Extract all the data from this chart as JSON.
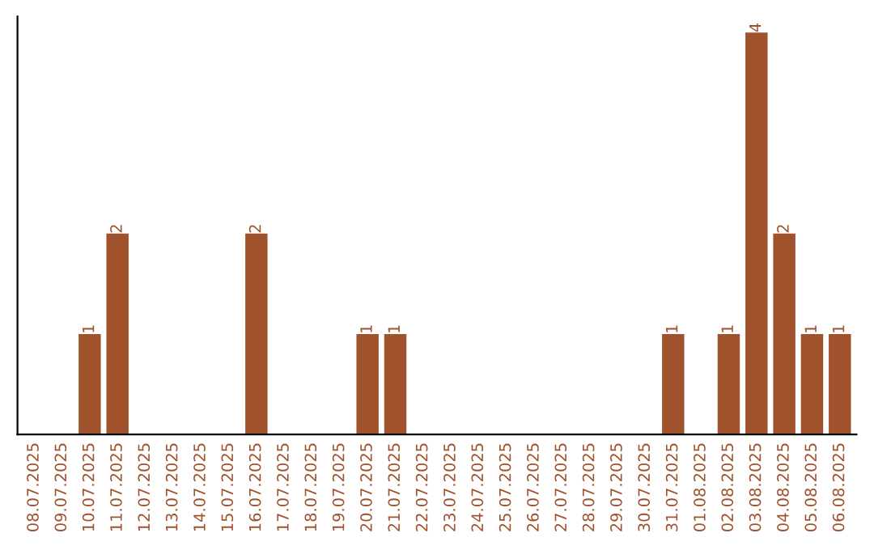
{
  "chart_data": {
    "type": "bar",
    "categories": [
      "08.07.2025",
      "09.07.2025",
      "10.07.2025",
      "11.07.2025",
      "12.07.2025",
      "13.07.2025",
      "14.07.2025",
      "15.07.2025",
      "16.07.2025",
      "17.07.2025",
      "18.07.2025",
      "19.07.2025",
      "20.07.2025",
      "21.07.2025",
      "22.07.2025",
      "23.07.2025",
      "24.07.2025",
      "25.07.2025",
      "26.07.2025",
      "27.07.2025",
      "28.07.2025",
      "29.07.2025",
      "30.07.2025",
      "31.07.2025",
      "01.08.2025",
      "02.08.2025",
      "03.08.2025",
      "04.08.2025",
      "05.08.2025",
      "06.08.2025"
    ],
    "values": [
      0,
      0,
      1,
      2,
      0,
      0,
      0,
      0,
      2,
      0,
      0,
      0,
      1,
      1,
      0,
      0,
      0,
      0,
      0,
      0,
      0,
      0,
      0,
      1,
      0,
      1,
      4,
      2,
      1,
      1
    ],
    "value_labels": [
      null,
      null,
      "1",
      "2",
      null,
      null,
      null,
      null,
      "2",
      null,
      null,
      null,
      "1",
      "1",
      null,
      null,
      null,
      null,
      null,
      null,
      null,
      null,
      null,
      "1",
      null,
      "1",
      "4",
      "2",
      "1",
      "1"
    ],
    "color": "#a0522d",
    "ylim": [
      0,
      4.16
    ],
    "grid": false,
    "legend": false
  }
}
